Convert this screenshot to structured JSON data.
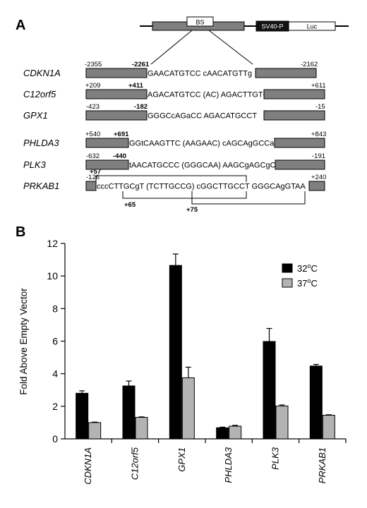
{
  "figure": {
    "panel_a_label": "A",
    "panel_b_label": "B",
    "construct": {
      "bs_label": "BS",
      "promoter_label": "SV40-P",
      "reporter_label": "Luc"
    },
    "genes": [
      {
        "name": "CDKN1A",
        "left_coord": "-2355",
        "site_coord": "-2261",
        "right_coord": "-2162",
        "sequence": "GAACATGTCC cAACATGTTg"
      },
      {
        "name": "C12orf5",
        "left_coord": "+209",
        "site_coord": "+411",
        "right_coord": "+611",
        "sequence": "AGACATGTCC (AC) AGACTTGTCT"
      },
      {
        "name": "GPX1",
        "left_coord": "-423",
        "site_coord": "-182",
        "right_coord": "-15",
        "sequence": "GGGCcAGaCC AGACATGCCT"
      },
      {
        "name": "PHLDA3",
        "left_coord": "+540",
        "site_coord": "+691",
        "right_coord": "+843",
        "sequence": "GGtCAAGTTC (AAGAAC) cAGCAgGCCa"
      },
      {
        "name": "PLK3",
        "left_coord": "-632",
        "site_coord": "-440",
        "right_coord": "-191",
        "sequence": "tAACATGCCC (GGGCAA) AAGCgAGCgC"
      },
      {
        "name": "PRKAB1",
        "left_coord": "-126",
        "site_coord": "+57",
        "right_coord": "+240",
        "sequence": "cccCTTGCgT (TCTTGCCG) cGGCTTGCCT GGGCAgGTAA",
        "bracket_coord_1": "+65",
        "bracket_coord_2": "+75"
      }
    ]
  },
  "chart_data": {
    "type": "bar",
    "ylabel": "Fold Above Empty Vector",
    "ylim": [
      0,
      12
    ],
    "yticks": [
      "0",
      "2",
      "4",
      "6",
      "8",
      "10",
      "12"
    ],
    "categories": [
      "CDKN1A",
      "C12orf5",
      "GPX1",
      "PHLDA3",
      "PLK3",
      "PRKAB1"
    ],
    "series": [
      {
        "name_prefix": "32",
        "name_sup": "o",
        "name_suffix": "C",
        "color": "#000000",
        "values": [
          2.8,
          3.25,
          10.65,
          0.68,
          5.98,
          4.47
        ],
        "errors": [
          0.15,
          0.3,
          0.7,
          0.04,
          0.8,
          0.1
        ]
      },
      {
        "name_prefix": "37",
        "name_sup": "o",
        "name_suffix": "C",
        "color": "#b3b3b3",
        "values": [
          1.0,
          1.32,
          3.75,
          0.78,
          2.02,
          1.45
        ],
        "errors": [
          0.03,
          0.03,
          0.65,
          0.05,
          0.06,
          0.03
        ]
      }
    ],
    "legend_position": "top-right",
    "grid": false
  }
}
